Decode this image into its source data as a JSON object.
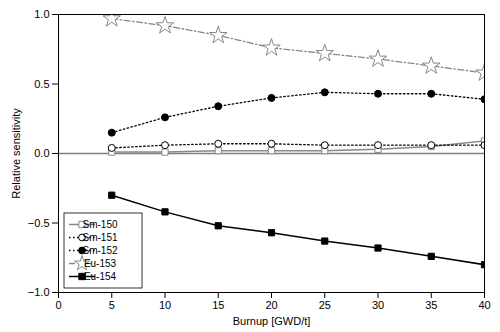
{
  "chart_data": {
    "type": "line",
    "xlabel": "Burnup [GWD/t]",
    "ylabel": "Relative sensitivity",
    "x": [
      5,
      10,
      15,
      20,
      25,
      30,
      35,
      40
    ],
    "series": [
      {
        "name": "Sm-150",
        "color": "#888888",
        "marker": "open-square",
        "line_style": "solid",
        "values": [
          0.01,
          0.01,
          0.02,
          0.02,
          0.02,
          0.03,
          0.05,
          0.09
        ]
      },
      {
        "name": "Sm-151",
        "color": "#000000",
        "marker": "open-circle",
        "line_style": "dotted",
        "values": [
          0.04,
          0.06,
          0.07,
          0.07,
          0.06,
          0.06,
          0.06,
          0.06
        ]
      },
      {
        "name": "Sm-152",
        "color": "#000000",
        "marker": "circle",
        "line_style": "dotted",
        "values": [
          0.15,
          0.26,
          0.34,
          0.4,
          0.44,
          0.43,
          0.43,
          0.39
        ]
      },
      {
        "name": "Eu-153",
        "color": "#888888",
        "marker": "open-star",
        "line_style": "dashdot",
        "values": [
          0.97,
          0.92,
          0.85,
          0.76,
          0.72,
          0.68,
          0.63,
          0.58
        ]
      },
      {
        "name": "Eu-154",
        "color": "#000000",
        "marker": "square",
        "line_style": "solid",
        "values": [
          -0.3,
          -0.42,
          -0.52,
          -0.57,
          -0.63,
          -0.68,
          -0.74,
          -0.8
        ]
      }
    ],
    "xlim": [
      0,
      40
    ],
    "ylim": [
      -1.0,
      1.0
    ],
    "xticks": [
      0,
      5,
      10,
      15,
      20,
      25,
      30,
      35,
      40
    ],
    "yticks": [
      {
        "value": -1.0,
        "label": "−1.0"
      },
      {
        "value": -0.5,
        "label": "−0.5"
      },
      {
        "value": 0.0,
        "label": "0.0"
      },
      {
        "value": 0.5,
        "label": "0.5"
      },
      {
        "value": 1.0,
        "label": "1.0"
      }
    ],
    "grid": false,
    "legend": "lower left"
  }
}
